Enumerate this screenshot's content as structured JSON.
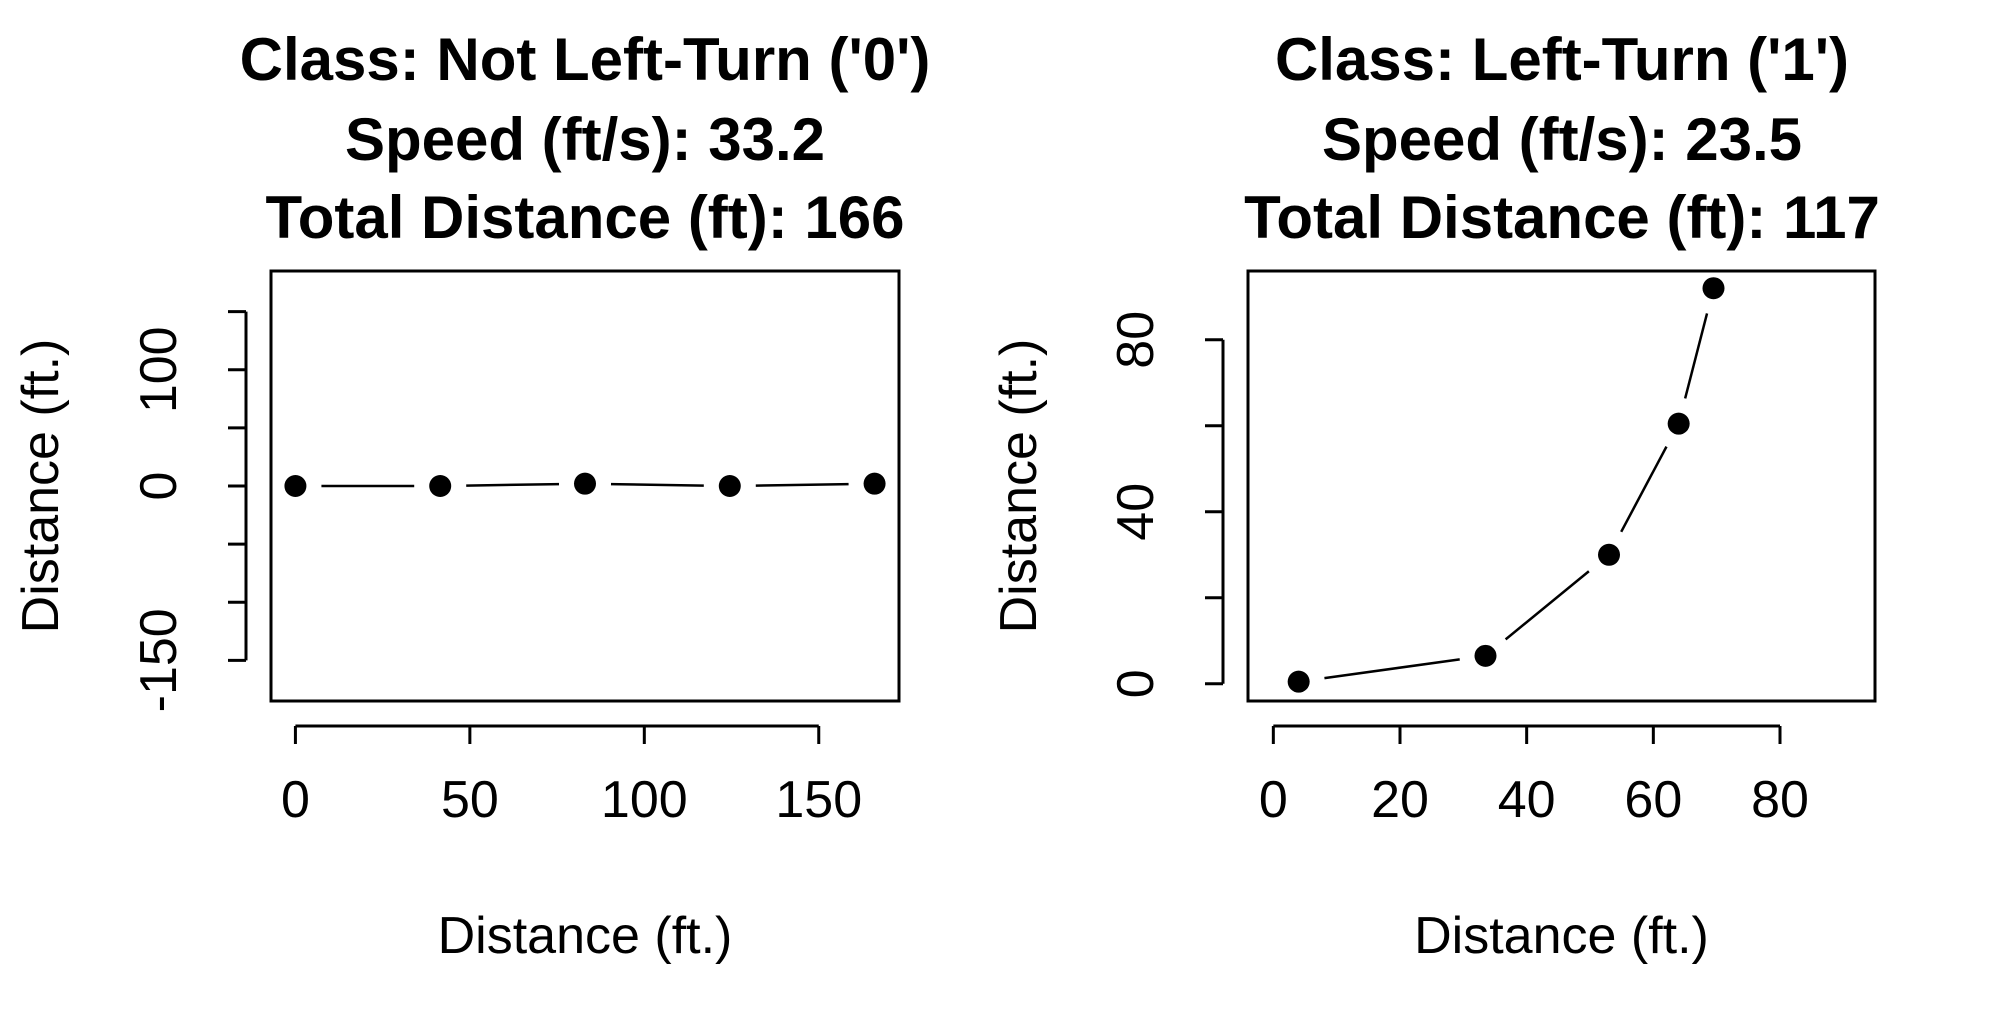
{
  "chart_data": [
    {
      "type": "line",
      "title_lines": [
        "Class: Not Left-Turn ('0')",
        "Speed (ft/s): 33.2",
        "Total Distance (ft): 166"
      ],
      "xlabel": "Distance (ft.)",
      "ylabel": "Distance (ft.)",
      "xlim": [
        -7,
        173
      ],
      "ylim": [
        -185,
        185
      ],
      "x_ticks": [
        0,
        50,
        100,
        150
      ],
      "x_tick_labels": [
        "0",
        "50",
        "100",
        "150"
      ],
      "y_ticks": [
        -150,
        -100,
        -50,
        0,
        50,
        100,
        150
      ],
      "y_tick_labels": [
        "-150",
        "",
        "",
        "0",
        "",
        "100",
        ""
      ],
      "grid": false,
      "series": [
        {
          "x": [
            0,
            41.5,
            83,
            124.5,
            166
          ],
          "y": [
            0,
            0,
            2,
            0,
            2
          ]
        }
      ]
    },
    {
      "type": "line",
      "title_lines": [
        "Class: Left-Turn ('1')",
        "Speed (ft/s): 23.5",
        "Total Distance (ft): 117"
      ],
      "xlabel": "Distance (ft.)",
      "ylabel": "Distance (ft.)",
      "xlim": [
        -4,
        95
      ],
      "ylim": [
        -4,
        96
      ],
      "x_ticks": [
        0,
        20,
        40,
        60,
        80
      ],
      "x_tick_labels": [
        "0",
        "20",
        "40",
        "60",
        "80"
      ],
      "y_ticks": [
        0,
        20,
        40,
        60,
        80
      ],
      "y_tick_labels": [
        "0",
        "",
        "40",
        "",
        "80"
      ],
      "grid": false,
      "series": [
        {
          "x": [
            4,
            33.5,
            53,
            64,
            69.5
          ],
          "y": [
            0.5,
            6.5,
            30,
            60.5,
            92
          ]
        }
      ]
    }
  ]
}
